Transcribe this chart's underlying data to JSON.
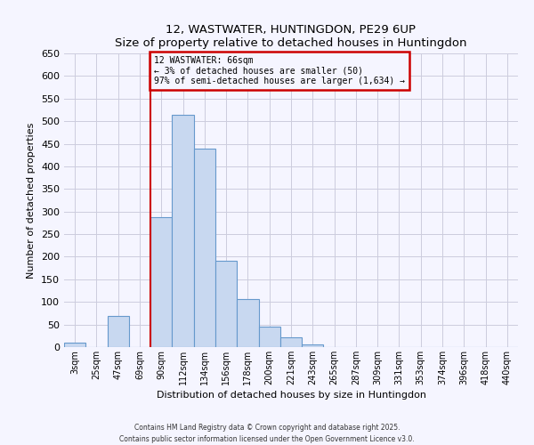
{
  "title": "12, WASTWATER, HUNTINGDON, PE29 6UP",
  "subtitle": "Size of property relative to detached houses in Huntingdon",
  "xlabel": "Distribution of detached houses by size in Huntingdon",
  "ylabel": "Number of detached properties",
  "categories": [
    "3sqm",
    "25sqm",
    "47sqm",
    "69sqm",
    "90sqm",
    "112sqm",
    "134sqm",
    "156sqm",
    "178sqm",
    "200sqm",
    "221sqm",
    "243sqm",
    "265sqm",
    "287sqm",
    "309sqm",
    "331sqm",
    "353sqm",
    "374sqm",
    "396sqm",
    "418sqm",
    "440sqm"
  ],
  "bar_heights": [
    10,
    0,
    68,
    0,
    288,
    515,
    440,
    192,
    106,
    46,
    22,
    5,
    0,
    0,
    0,
    0,
    0,
    0,
    0,
    0,
    0
  ],
  "bar_color": "#c8d8f0",
  "bar_edge_color": "#6699cc",
  "vline_x": 3.5,
  "vline_color": "#cc0000",
  "annotation_text": "12 WASTWATER: 66sqm\n← 3% of detached houses are smaller (50)\n97% of semi-detached houses are larger (1,634) →",
  "annotation_box_color": "#cc0000",
  "ylim": [
    0,
    650
  ],
  "yticks": [
    0,
    50,
    100,
    150,
    200,
    250,
    300,
    350,
    400,
    450,
    500,
    550,
    600,
    650
  ],
  "footer_line1": "Contains HM Land Registry data © Crown copyright and database right 2025.",
  "footer_line2": "Contains public sector information licensed under the Open Government Licence v3.0.",
  "bg_color": "#f5f5ff",
  "grid_color": "#ccccdd"
}
